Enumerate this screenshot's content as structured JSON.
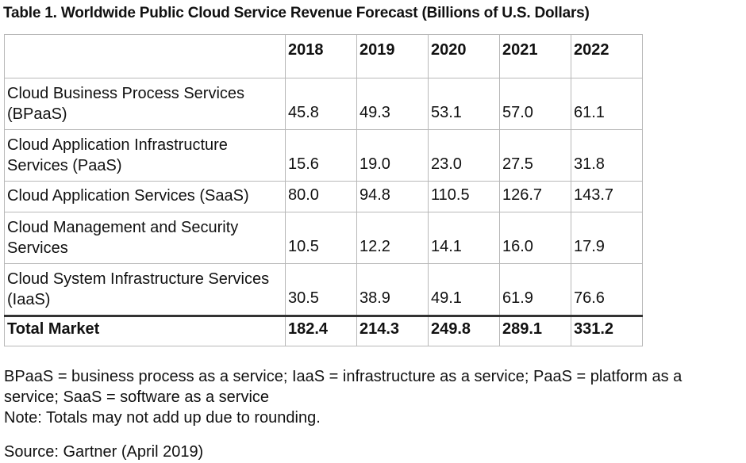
{
  "title": "Table 1. Worldwide Public Cloud Service Revenue Forecast (Billions of U.S. Dollars)",
  "chart_data": {
    "type": "table",
    "title": "Table 1. Worldwide Public Cloud Service Revenue Forecast (Billions of U.S. Dollars)",
    "columns": [
      "",
      "2018",
      "2019",
      "2020",
      "2021",
      "2022"
    ],
    "rows": [
      {
        "label": "Cloud Business Process Services (BPaaS)",
        "values": [
          "45.8",
          "49.3",
          "53.1",
          "57.0",
          "61.1"
        ]
      },
      {
        "label": "Cloud Application Infrastructure Services (PaaS)",
        "values": [
          "15.6",
          "19.0",
          "23.0",
          "27.5",
          "31.8"
        ]
      },
      {
        "label": "Cloud Application Services (SaaS)",
        "values": [
          "80.0",
          "94.8",
          "110.5",
          "126.7",
          "143.7"
        ]
      },
      {
        "label": "Cloud Management and Security Services",
        "values": [
          "10.5",
          "12.2",
          "14.1",
          "16.0",
          "17.9"
        ]
      },
      {
        "label": "Cloud System Infrastructure Services (IaaS)",
        "values": [
          "30.5",
          "38.9",
          "49.1",
          "61.9",
          "76.6"
        ]
      }
    ],
    "total": {
      "label": "Total Market",
      "values": [
        "182.4",
        "214.3",
        "249.8",
        "289.1",
        "331.2"
      ]
    }
  },
  "notes": {
    "abbreviations": "BPaaS = business process as a service; IaaS = infrastructure as a service; PaaS = platform as a service; SaaS = software as a service",
    "rounding": "Note: Totals may not add up due to rounding."
  },
  "source": "Source: Gartner (April 2019)"
}
